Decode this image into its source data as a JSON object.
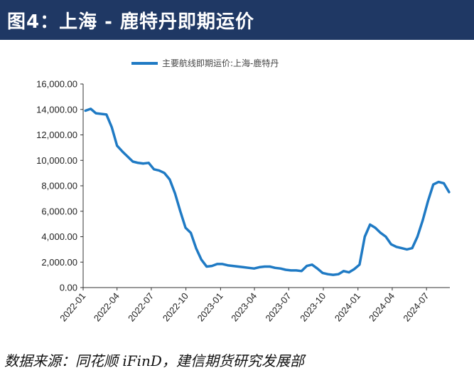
{
  "header": {
    "title": "图4：上海 - 鹿特丹即期运价"
  },
  "footer": {
    "source": "数据来源：同花顺 iFinD，建信期货研究发展部"
  },
  "colors": {
    "header_bg": "#1f3864",
    "series": "#1f7ac4"
  },
  "chart_data": {
    "type": "line",
    "title": "",
    "xlabel": "",
    "ylabel": "",
    "ylim": [
      0,
      16000
    ],
    "y_ticks": [
      0,
      2000,
      4000,
      6000,
      8000,
      10000,
      12000,
      14000,
      16000
    ],
    "y_tick_labels": [
      "0.00",
      "2,000.00",
      "4,000.00",
      "6,000.00",
      "8,000.00",
      "10,000.00",
      "12,000.00",
      "14,000.00",
      "16,000.00"
    ],
    "x_range": [
      "2022-01",
      "2024-09"
    ],
    "x_tick_labels": [
      "2022-01",
      "2022-04",
      "2022-07",
      "2022-10",
      "2023-01",
      "2023-04",
      "2023-07",
      "2023-10",
      "2024-01",
      "2024-04",
      "2024-07"
    ],
    "grid": false,
    "legend_position": "top",
    "series": [
      {
        "name": "主要航线即期运价:上海-鹿特丹",
        "x": [
          "2022-01-07",
          "2022-01-21",
          "2022-02-04",
          "2022-02-18",
          "2022-03-04",
          "2022-03-18",
          "2022-04-01",
          "2022-04-15",
          "2022-04-29",
          "2022-05-13",
          "2022-05-27",
          "2022-06-10",
          "2022-06-24",
          "2022-07-08",
          "2022-07-22",
          "2022-08-05",
          "2022-08-19",
          "2022-09-02",
          "2022-09-16",
          "2022-09-30",
          "2022-10-14",
          "2022-10-28",
          "2022-11-11",
          "2022-11-25",
          "2022-12-09",
          "2022-12-23",
          "2023-01-06",
          "2023-01-20",
          "2023-02-03",
          "2023-02-17",
          "2023-03-03",
          "2023-03-17",
          "2023-03-31",
          "2023-04-14",
          "2023-04-28",
          "2023-05-12",
          "2023-05-26",
          "2023-06-09",
          "2023-06-23",
          "2023-07-07",
          "2023-07-21",
          "2023-08-04",
          "2023-08-18",
          "2023-09-01",
          "2023-09-15",
          "2023-09-29",
          "2023-10-13",
          "2023-10-27",
          "2023-11-10",
          "2023-11-24",
          "2023-12-08",
          "2023-12-22",
          "2024-01-05",
          "2024-01-19",
          "2024-02-02",
          "2024-02-16",
          "2024-03-01",
          "2024-03-15",
          "2024-03-29",
          "2024-04-12",
          "2024-04-26",
          "2024-05-10",
          "2024-05-24",
          "2024-06-07",
          "2024-06-21",
          "2024-07-05",
          "2024-07-19",
          "2024-08-02",
          "2024-08-16",
          "2024-08-30"
        ],
        "values": [
          13900,
          14050,
          13700,
          13650,
          13600,
          12600,
          11150,
          10700,
          10300,
          9900,
          9800,
          9750,
          9800,
          9300,
          9200,
          9000,
          8500,
          7400,
          6000,
          4700,
          4300,
          3100,
          2200,
          1650,
          1700,
          1850,
          1850,
          1750,
          1700,
          1650,
          1600,
          1550,
          1500,
          1600,
          1650,
          1650,
          1550,
          1500,
          1400,
          1350,
          1350,
          1300,
          1700,
          1800,
          1500,
          1150,
          1050,
          1000,
          1050,
          1300,
          1200,
          1450,
          1800,
          4000,
          4950,
          4700,
          4300,
          4000,
          3400,
          3200,
          3100,
          3000,
          3100,
          4000,
          5300,
          6800,
          8100,
          8300,
          8200,
          7500
        ]
      }
    ]
  }
}
